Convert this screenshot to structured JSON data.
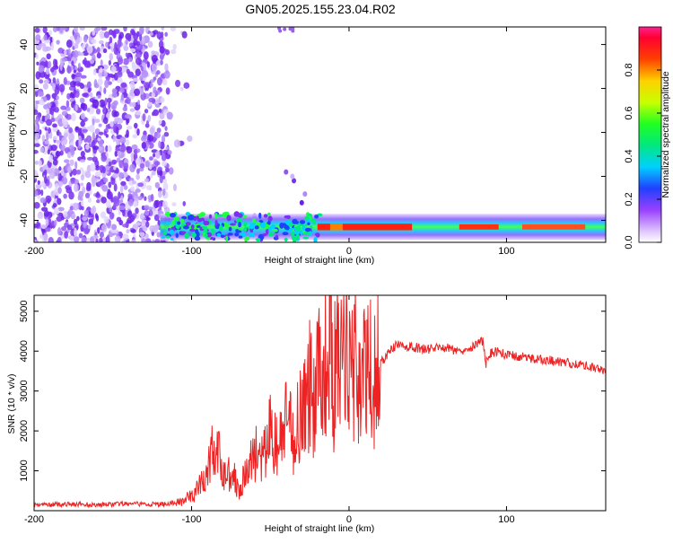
{
  "title": "GN05.2025.155.23.04.R02",
  "chart_data": [
    {
      "type": "heatmap",
      "xlabel": "Height of straight line (km)",
      "ylabel": "Frequency (Hz)",
      "xlim": [
        -200,
        163
      ],
      "ylim": [
        -50,
        48
      ],
      "xticks": [
        -200,
        -100,
        0,
        100
      ],
      "yticks": [
        -40,
        -20,
        0,
        20,
        40
      ],
      "colorbar": {
        "label": "Normalized spectral amplitude",
        "range": [
          0,
          1
        ],
        "ticks": [
          0.0,
          0.2,
          0.4,
          0.6,
          0.8
        ]
      },
      "features": {
        "noise_region_x": [
          -200,
          -100
        ],
        "signal_band_hz": -43,
        "strong_signal_x": [
          -30,
          163
        ],
        "peak_amplitude_x": [
          -20,
          40
        ]
      }
    },
    {
      "type": "line",
      "xlabel": "Height of straight line (km)",
      "ylabel": "SNR (10 * v/v)",
      "xlim": [
        -200,
        163
      ],
      "ylim": [
        0,
        5400
      ],
      "xticks": [
        -200,
        -100,
        0,
        100
      ],
      "yticks": [
        1000,
        2000,
        3000,
        4000,
        5000
      ],
      "color": "#ee2222",
      "series": [
        {
          "name": "SNR",
          "x": [
            -200,
            -180,
            -160,
            -140,
            -120,
            -110,
            -100,
            -95,
            -90,
            -87,
            -85,
            -83,
            -80,
            -75,
            -70,
            -65,
            -60,
            -55,
            -50,
            -45,
            -40,
            -35,
            -30,
            -27,
            -25,
            -22,
            -20,
            -17,
            -15,
            -12,
            -10,
            -8,
            -5,
            -3,
            0,
            3,
            5,
            8,
            10,
            13,
            15,
            18,
            20,
            25,
            30,
            40,
            50,
            60,
            70,
            80,
            85,
            87,
            90,
            95,
            100,
            110,
            120,
            130,
            140,
            150,
            160,
            163
          ],
          "y": [
            150,
            160,
            150,
            170,
            160,
            200,
            350,
            600,
            900,
            1600,
            1200,
            1400,
            900,
            1000,
            600,
            900,
            1500,
            1200,
            2000,
            1500,
            2200,
            1800,
            2800,
            2400,
            3300,
            2600,
            4100,
            3400,
            3700,
            5300,
            2800,
            4000,
            3500,
            3900,
            4100,
            3600,
            3800,
            3000,
            3400,
            3600,
            3300,
            3500,
            3700,
            3950,
            4150,
            4100,
            4050,
            4100,
            4000,
            4150,
            4250,
            3700,
            3950,
            4000,
            3900,
            3850,
            3800,
            3750,
            3700,
            3650,
            3550,
            3500
          ]
        }
      ]
    }
  ]
}
